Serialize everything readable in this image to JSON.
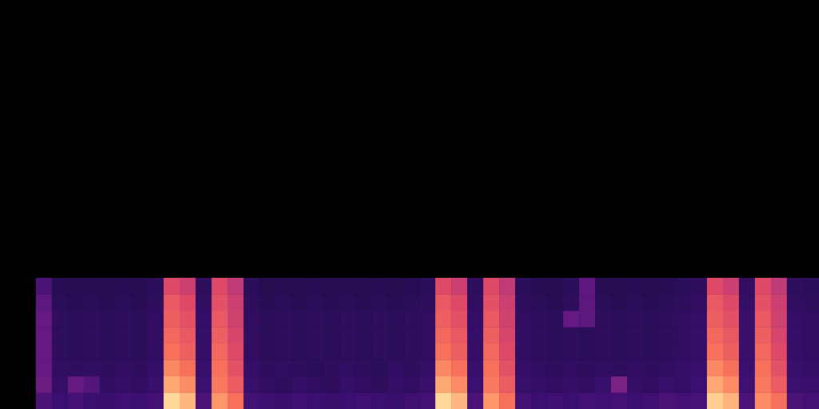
{
  "chart_data": {
    "type": "heatmap",
    "tick_labels": false,
    "grid": false,
    "colors": [
      "#000004",
      "#1b0c41",
      "#3b0f70",
      "#641a80",
      "#8c2981",
      "#b73779",
      "#de4968",
      "#f7705c",
      "#fe9f6d",
      "#fecf92",
      "#fcfdbf"
    ],
    "color_range": [
      0,
      100
    ],
    "cells": [
      [
        24,
        20,
        22,
        20,
        19,
        21,
        20,
        22,
        92,
        85,
        24,
        78,
        70,
        22,
        20,
        19,
        21,
        20,
        19,
        20,
        21,
        20,
        19,
        21,
        22,
        92,
        85,
        24,
        78,
        70,
        22,
        20,
        21,
        20,
        22,
        21,
        22,
        20,
        21,
        24,
        22,
        23,
        90,
        84,
        24,
        76,
        70,
        24,
        22
      ],
      [
        32,
        18,
        30,
        26,
        17,
        18,
        17,
        19,
        82,
        76,
        20,
        72,
        65,
        19,
        17,
        16,
        18,
        17,
        16,
        18,
        17,
        16,
        18,
        17,
        19,
        82,
        76,
        20,
        72,
        65,
        19,
        18,
        17,
        18,
        17,
        19,
        35,
        18,
        17,
        19,
        18,
        20,
        82,
        76,
        21,
        72,
        65,
        20,
        19
      ],
      [
        30,
        17,
        16,
        17,
        16,
        17,
        16,
        18,
        75,
        70,
        19,
        70,
        62,
        18,
        16,
        17,
        16,
        15,
        16,
        17,
        16,
        15,
        17,
        16,
        18,
        75,
        70,
        19,
        70,
        62,
        18,
        17,
        16,
        17,
        16,
        17,
        16,
        17,
        16,
        17,
        18,
        19,
        75,
        70,
        20,
        70,
        62,
        19,
        18
      ],
      [
        30,
        16,
        15,
        16,
        15,
        16,
        15,
        17,
        70,
        66,
        18,
        68,
        60,
        17,
        15,
        16,
        15,
        16,
        15,
        16,
        15,
        16,
        15,
        16,
        17,
        70,
        66,
        18,
        68,
        60,
        17,
        16,
        15,
        16,
        15,
        16,
        15,
        16,
        15,
        16,
        17,
        18,
        70,
        66,
        19,
        68,
        60,
        18,
        17
      ],
      [
        30,
        16,
        15,
        16,
        15,
        16,
        15,
        17,
        68,
        64,
        18,
        66,
        58,
        17,
        15,
        16,
        15,
        16,
        15,
        16,
        15,
        16,
        15,
        16,
        17,
        68,
        64,
        18,
        66,
        58,
        17,
        16,
        15,
        16,
        15,
        16,
        15,
        16,
        15,
        16,
        17,
        18,
        68,
        64,
        19,
        66,
        58,
        18,
        17
      ],
      [
        30,
        16,
        15,
        16,
        15,
        16,
        15,
        17,
        66,
        62,
        18,
        64,
        56,
        17,
        15,
        16,
        15,
        16,
        15,
        16,
        15,
        16,
        15,
        16,
        17,
        66,
        62,
        18,
        64,
        56,
        17,
        16,
        15,
        30,
        28,
        16,
        15,
        16,
        15,
        16,
        17,
        18,
        66,
        62,
        19,
        64,
        56,
        18,
        17
      ],
      [
        28,
        15,
        14,
        15,
        14,
        15,
        14,
        16,
        64,
        60,
        17,
        62,
        55,
        16,
        14,
        15,
        14,
        15,
        14,
        15,
        14,
        15,
        14,
        15,
        16,
        64,
        60,
        17,
        62,
        55,
        16,
        15,
        14,
        16,
        28,
        15,
        14,
        15,
        14,
        15,
        16,
        17,
        64,
        60,
        18,
        62,
        55,
        17,
        16
      ],
      [
        24,
        14,
        13,
        14,
        13,
        14,
        13,
        15,
        60,
        55,
        16,
        60,
        52,
        15,
        13,
        14,
        13,
        14,
        13,
        14,
        13,
        14,
        13,
        14,
        15,
        60,
        55,
        16,
        60,
        52,
        15,
        14,
        13,
        15,
        28,
        14,
        13,
        14,
        13,
        14,
        15,
        16,
        60,
        55,
        17,
        60,
        52,
        16,
        15
      ]
    ]
  }
}
